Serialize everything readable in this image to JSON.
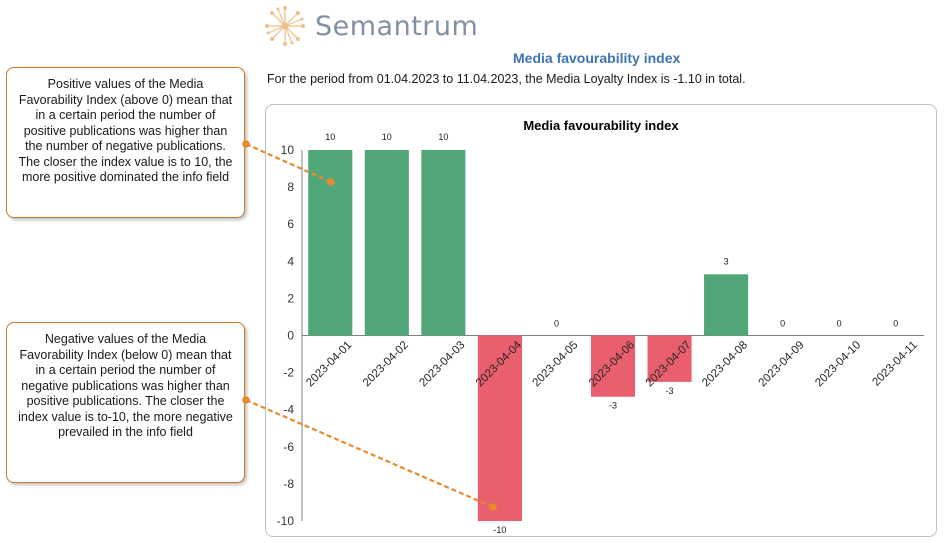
{
  "header": {
    "logo_text": "Semantrum",
    "logo_icon": "starburst-logo-icon",
    "heading": "Media favourability index",
    "period_text": "For the period from 01.04.2023 to 11.04.2023, the Media Loyalty Index is -1.10 in total."
  },
  "callouts": {
    "positive": "Positive values of the Media Favorability Index (above 0) mean that in a certain period the number of positive publications was higher than the number of negative publications. The closer the index value is to 10,  the more positive dominated the info field",
    "negative": "Negative values of the  Media Favorability Index (below 0) mean that in a certain period the number of negative publications was higher than positive publications. The closer the index value is to-10, the more negative prevailed in the info field"
  },
  "colors": {
    "positive": "#52a77a",
    "negative": "#ea5f6d",
    "callout_border": "#c97a2d",
    "connector": "#e88a2e"
  },
  "chart_data": {
    "type": "bar",
    "title": "Media favourability index",
    "categories": [
      "2023-04-01",
      "2023-04-02",
      "2023-04-03",
      "2023-04-04",
      "2023-04-05",
      "2023-04-06",
      "2023-04-07",
      "2023-04-08",
      "2023-04-09",
      "2023-04-10",
      "2023-04-11"
    ],
    "values": [
      10,
      10,
      10,
      -10,
      0,
      -3.3,
      -2.5,
      3.3,
      0,
      0,
      0
    ],
    "data_labels": [
      "10",
      "10",
      "10",
      "-10",
      "0",
      "-3",
      "-3",
      "3",
      "0",
      "0",
      "0"
    ],
    "y_ticks": [
      "10",
      "8",
      "6",
      "4",
      "2",
      "0",
      "-2",
      "-4",
      "-6",
      "-8",
      "-10"
    ],
    "ylim": [
      -10,
      10
    ],
    "xlabel": "",
    "ylabel": "",
    "grid": false,
    "legend": "none"
  }
}
